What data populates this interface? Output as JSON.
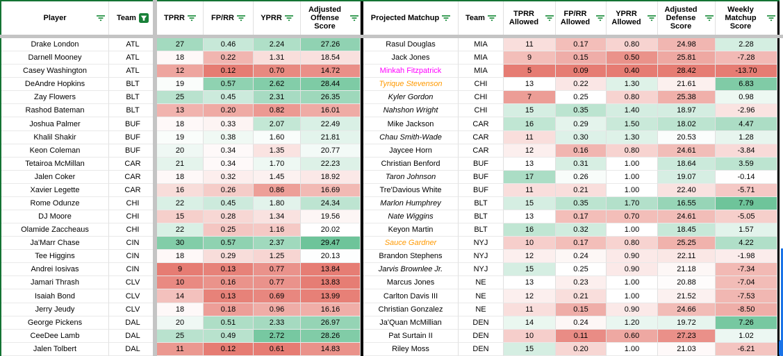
{
  "colors": {
    "scale_red": "#e67c73",
    "scale_white": "#ffffff",
    "scale_green": "#57bb8a",
    "filter_icon_green": "#1e8e3e",
    "active_filter_bg": "#188038",
    "sheet_border_green": "#137333",
    "frozen_divider_gray": "#c4c4c4",
    "table_divider_black": "#000000",
    "scrollbar_blue": "#1a73e8",
    "magenta_player_text": "#ff00ff",
    "orange_player_text": "#ff9900"
  },
  "color_scales": {
    "tprr": {
      "lo": 9,
      "mid": 18.5,
      "hi": 34
    },
    "fprr": {
      "lo": 0.12,
      "mid": 0.35,
      "hi": 0.68
    },
    "yprr": {
      "lo": 0.61,
      "mid": 1.55,
      "hi": 3.0
    },
    "adj_offense": {
      "lo": 13.8,
      "mid": 20.0,
      "hi": 31
    },
    "tprr_allowed": {
      "lo": 5,
      "mid": 13,
      "hi": 21
    },
    "fprr_allowed": {
      "lo": 0.09,
      "mid": 0.25,
      "hi": 0.5
    },
    "yprr_allowed": {
      "lo": 0.4,
      "mid": 1.0,
      "hi": 2.55
    },
    "adj_defense": {
      "lo": 14.0,
      "mid": 20.7,
      "hi": 28.42,
      "invert": true
    },
    "weekly_matchup": {
      "lo": -13.7,
      "mid": 0,
      "hi": 9
    }
  },
  "left_table": {
    "headers": [
      {
        "label": "Player",
        "icon": "filter-lines"
      },
      {
        "label": "Team",
        "icon": "filter-funnel-active"
      },
      {
        "label": "TPRR",
        "icon": "filter-lines"
      },
      {
        "label": "FP/RR",
        "icon": "filter-lines"
      },
      {
        "label": "YPRR",
        "icon": "filter-lines"
      },
      {
        "label": "Adjusted Offense Score",
        "icon": "filter-lines"
      }
    ],
    "rows": [
      {
        "player": "Drake London",
        "team": "ATL",
        "tprr": "27",
        "fprr": "0.46",
        "yprr": "2.24",
        "adj_offense": "27.26"
      },
      {
        "player": "Darnell Mooney",
        "team": "ATL",
        "tprr": "18",
        "fprr": "0.22",
        "yprr": "1.31",
        "adj_offense": "18.54"
      },
      {
        "player": "Casey Washington",
        "team": "ATL",
        "tprr": "12",
        "fprr": "0.12",
        "yprr": "0.70",
        "adj_offense": "14.72"
      },
      {
        "player": "DeAndre Hopkins",
        "team": "BLT",
        "tprr": "19",
        "fprr": "0.57",
        "yprr": "2.62",
        "adj_offense": "28.44"
      },
      {
        "player": "Zay Flowers",
        "team": "BLT",
        "tprr": "25",
        "fprr": "0.45",
        "yprr": "2.31",
        "adj_offense": "26.35"
      },
      {
        "player": "Rashod Bateman",
        "team": "BLT",
        "tprr": "13",
        "fprr": "0.20",
        "yprr": "0.82",
        "adj_offense": "16.01"
      },
      {
        "player": "Joshua Palmer",
        "team": "BUF",
        "tprr": "18",
        "fprr": "0.33",
        "yprr": "2.07",
        "adj_offense": "22.49"
      },
      {
        "player": "Khalil Shakir",
        "team": "BUF",
        "tprr": "19",
        "fprr": "0.38",
        "yprr": "1.60",
        "adj_offense": "21.81"
      },
      {
        "player": "Keon Coleman",
        "team": "BUF",
        "tprr": "20",
        "fprr": "0.34",
        "yprr": "1.35",
        "adj_offense": "20.77"
      },
      {
        "player": "Tetairoa McMillan",
        "team": "CAR",
        "tprr": "21",
        "fprr": "0.34",
        "yprr": "1.70",
        "adj_offense": "22.23"
      },
      {
        "player": "Jalen Coker",
        "team": "CAR",
        "tprr": "18",
        "fprr": "0.32",
        "yprr": "1.45",
        "adj_offense": "18.92"
      },
      {
        "player": "Xavier Legette",
        "team": "CAR",
        "tprr": "16",
        "fprr": "0.26",
        "yprr": "0.86",
        "adj_offense": "16.69"
      },
      {
        "player": "Rome Odunze",
        "team": "CHI",
        "tprr": "22",
        "fprr": "0.45",
        "yprr": "1.80",
        "adj_offense": "24.34"
      },
      {
        "player": "DJ Moore",
        "team": "CHI",
        "tprr": "15",
        "fprr": "0.28",
        "yprr": "1.34",
        "adj_offense": "19.56"
      },
      {
        "player": "Olamide Zaccheaus",
        "team": "CHI",
        "tprr": "22",
        "fprr": "0.25",
        "yprr": "1.16",
        "adj_offense": "20.02"
      },
      {
        "player": "Ja'Marr Chase",
        "team": "CIN",
        "tprr": "30",
        "fprr": "0.57",
        "yprr": "2.37",
        "adj_offense": "29.47"
      },
      {
        "player": "Tee Higgins",
        "team": "CIN",
        "tprr": "18",
        "fprr": "0.29",
        "yprr": "1.25",
        "adj_offense": "20.13"
      },
      {
        "player": "Andrei Iosivas",
        "team": "CIN",
        "tprr": "9",
        "fprr": "0.13",
        "yprr": "0.77",
        "adj_offense": "13.84"
      },
      {
        "player": "Jamari Thrash",
        "team": "CLV",
        "tprr": "10",
        "fprr": "0.16",
        "yprr": "0.77",
        "adj_offense": "13.83"
      },
      {
        "player": "Isaiah Bond",
        "team": "CLV",
        "tprr": "14",
        "fprr": "0.13",
        "yprr": "0.69",
        "adj_offense": "13.99"
      },
      {
        "player": "Jerry Jeudy",
        "team": "CLV",
        "tprr": "18",
        "fprr": "0.18",
        "yprr": "0.96",
        "adj_offense": "16.16"
      },
      {
        "player": "George Pickens",
        "team": "DAL",
        "tprr": "20",
        "fprr": "0.51",
        "yprr": "2.33",
        "adj_offense": "26.97"
      },
      {
        "player": "CeeDee Lamb",
        "team": "DAL",
        "tprr": "25",
        "fprr": "0.49",
        "yprr": "2.72",
        "adj_offense": "28.26"
      },
      {
        "player": "Jalen Tolbert",
        "team": "DAL",
        "tprr": "11",
        "fprr": "0.12",
        "yprr": "0.61",
        "adj_offense": "14.83"
      }
    ]
  },
  "right_table": {
    "headers": [
      {
        "label": "Projected Matchup",
        "icon": "filter-lines"
      },
      {
        "label": "Team",
        "icon": "filter-lines"
      },
      {
        "label": "TPRR Allowed",
        "icon": "filter-lines"
      },
      {
        "label": "FP/RR Allowed",
        "icon": "filter-lines"
      },
      {
        "label": "YPRR Allowed",
        "icon": "filter-lines"
      },
      {
        "label": "Adjusted Defense Score",
        "icon": "filter-lines"
      },
      {
        "label": "Weekly Matchup Score",
        "icon": "filter-lines"
      }
    ],
    "rows": [
      {
        "player": "Rasul Douglas",
        "name_style": "normal",
        "team": "MIA",
        "tprr_allowed": "11",
        "fprr_allowed": "0.17",
        "yprr_allowed": "0.80",
        "adj_defense": "24.98",
        "weekly_matchup": "2.28"
      },
      {
        "player": "Jack Jones",
        "name_style": "normal",
        "team": "MIA",
        "tprr_allowed": "9",
        "fprr_allowed": "0.15",
        "yprr_allowed": "0.50",
        "adj_defense": "25.81",
        "weekly_matchup": "-7.28"
      },
      {
        "player": "Minkah Fitzpatrick",
        "name_style": "magenta",
        "team": "MIA",
        "tprr_allowed": "5",
        "fprr_allowed": "0.09",
        "yprr_allowed": "0.40",
        "adj_defense": "28.42",
        "weekly_matchup": "-13.70"
      },
      {
        "player": "Tyrique Stevenson",
        "name_style": "orange-italic",
        "team": "CHI",
        "tprr_allowed": "13",
        "fprr_allowed": "0.22",
        "yprr_allowed": "1.30",
        "adj_defense": "21.61",
        "weekly_matchup": "6.83"
      },
      {
        "player": "Kyler Gordon",
        "name_style": "italic",
        "team": "CHI",
        "tprr_allowed": "7",
        "fprr_allowed": "0.25",
        "yprr_allowed": "0.80",
        "adj_defense": "25.38",
        "weekly_matchup": "0.98"
      },
      {
        "player": "Nahshon Wright",
        "name_style": "italic",
        "team": "CHI",
        "tprr_allowed": "15",
        "fprr_allowed": "0.35",
        "yprr_allowed": "1.40",
        "adj_defense": "18.97",
        "weekly_matchup": "-2.96"
      },
      {
        "player": "Mike Jackson",
        "name_style": "normal",
        "team": "CAR",
        "tprr_allowed": "16",
        "fprr_allowed": "0.29",
        "yprr_allowed": "1.50",
        "adj_defense": "18.02",
        "weekly_matchup": "4.47"
      },
      {
        "player": "Chau Smith-Wade",
        "name_style": "italic",
        "team": "CAR",
        "tprr_allowed": "11",
        "fprr_allowed": "0.30",
        "yprr_allowed": "1.30",
        "adj_defense": "20.53",
        "weekly_matchup": "1.28"
      },
      {
        "player": "Jaycee Horn",
        "name_style": "normal",
        "team": "CAR",
        "tprr_allowed": "12",
        "fprr_allowed": "0.16",
        "yprr_allowed": "0.80",
        "adj_defense": "24.61",
        "weekly_matchup": "-3.84"
      },
      {
        "player": "Christian Benford",
        "name_style": "normal",
        "team": "BUF",
        "tprr_allowed": "13",
        "fprr_allowed": "0.31",
        "yprr_allowed": "1.00",
        "adj_defense": "18.64",
        "weekly_matchup": "3.59"
      },
      {
        "player": "Taron Johnson",
        "name_style": "italic",
        "team": "BUF",
        "tprr_allowed": "17",
        "fprr_allowed": "0.26",
        "yprr_allowed": "1.00",
        "adj_defense": "19.07",
        "weekly_matchup": "-0.14"
      },
      {
        "player": "Tre'Davious White",
        "name_style": "normal",
        "team": "BUF",
        "tprr_allowed": "11",
        "fprr_allowed": "0.21",
        "yprr_allowed": "1.00",
        "adj_defense": "22.40",
        "weekly_matchup": "-5.71"
      },
      {
        "player": "Marlon Humphrey",
        "name_style": "italic",
        "team": "BLT",
        "tprr_allowed": "15",
        "fprr_allowed": "0.35",
        "yprr_allowed": "1.70",
        "adj_defense": "16.55",
        "weekly_matchup": "7.79"
      },
      {
        "player": "Nate Wiggins",
        "name_style": "italic",
        "team": "BLT",
        "tprr_allowed": "13",
        "fprr_allowed": "0.17",
        "yprr_allowed": "0.70",
        "adj_defense": "24.61",
        "weekly_matchup": "-5.05"
      },
      {
        "player": "Keyon Martin",
        "name_style": "normal",
        "team": "BLT",
        "tprr_allowed": "16",
        "fprr_allowed": "0.32",
        "yprr_allowed": "1.00",
        "adj_defense": "18.45",
        "weekly_matchup": "1.57"
      },
      {
        "player": "Sauce Gardner",
        "name_style": "orange-italic",
        "team": "NYJ",
        "tprr_allowed": "10",
        "fprr_allowed": "0.17",
        "yprr_allowed": "0.80",
        "adj_defense": "25.25",
        "weekly_matchup": "4.22"
      },
      {
        "player": "Brandon Stephens",
        "name_style": "normal",
        "team": "NYJ",
        "tprr_allowed": "12",
        "fprr_allowed": "0.24",
        "yprr_allowed": "0.90",
        "adj_defense": "22.11",
        "weekly_matchup": "-1.98"
      },
      {
        "player": "Jarvis Brownlee Jr.",
        "name_style": "italic",
        "team": "NYJ",
        "tprr_allowed": "15",
        "fprr_allowed": "0.25",
        "yprr_allowed": "0.90",
        "adj_defense": "21.18",
        "weekly_matchup": "-7.34"
      },
      {
        "player": "Marcus Jones",
        "name_style": "normal",
        "team": "NE",
        "tprr_allowed": "13",
        "fprr_allowed": "0.23",
        "yprr_allowed": "1.00",
        "adj_defense": "20.88",
        "weekly_matchup": "-7.04"
      },
      {
        "player": "Carlton Davis III",
        "name_style": "normal",
        "team": "NE",
        "tprr_allowed": "12",
        "fprr_allowed": "0.21",
        "yprr_allowed": "1.00",
        "adj_defense": "21.52",
        "weekly_matchup": "-7.53"
      },
      {
        "player": "Christian Gonzalez",
        "name_style": "normal",
        "team": "NE",
        "tprr_allowed": "11",
        "fprr_allowed": "0.15",
        "yprr_allowed": "0.90",
        "adj_defense": "24.66",
        "weekly_matchup": "-8.50"
      },
      {
        "player": "Ja'Quan McMillian",
        "name_style": "normal",
        "team": "DEN",
        "tprr_allowed": "14",
        "fprr_allowed": "0.24",
        "yprr_allowed": "1.20",
        "adj_defense": "19.72",
        "weekly_matchup": "7.26"
      },
      {
        "player": "Pat Surtain II",
        "name_style": "normal",
        "team": "DEN",
        "tprr_allowed": "10",
        "fprr_allowed": "0.11",
        "yprr_allowed": "0.60",
        "adj_defense": "27.23",
        "weekly_matchup": "1.02"
      },
      {
        "player": "Riley Moss",
        "name_style": "normal",
        "team": "DEN",
        "tprr_allowed": "15",
        "fprr_allowed": "0.20",
        "yprr_allowed": "1.00",
        "adj_defense": "21.03",
        "weekly_matchup": "-6.21"
      }
    ]
  }
}
